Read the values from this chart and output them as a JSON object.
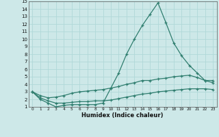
{
  "xlabel": "Humidex (Indice chaleur)",
  "xlim": [
    -0.5,
    23.5
  ],
  "ylim": [
    1,
    15
  ],
  "xticks": [
    0,
    1,
    2,
    3,
    4,
    5,
    6,
    7,
    8,
    9,
    10,
    11,
    12,
    13,
    14,
    15,
    16,
    17,
    18,
    19,
    20,
    21,
    22,
    23
  ],
  "yticks": [
    1,
    2,
    3,
    4,
    5,
    6,
    7,
    8,
    9,
    10,
    11,
    12,
    13,
    14,
    15
  ],
  "bg_color": "#cde8e8",
  "line_color": "#2e7d6e",
  "grid_color": "#b0d8d8",
  "series": [
    {
      "x": [
        0,
        1,
        2,
        3,
        4,
        5,
        6,
        7,
        8,
        9,
        10,
        11,
        12,
        13,
        14,
        15,
        16,
        17,
        18,
        19,
        20,
        21,
        22,
        23
      ],
      "y": [
        3.0,
        2.0,
        1.5,
        1.0,
        1.2,
        1.3,
        1.3,
        1.3,
        1.3,
        1.5,
        3.5,
        5.5,
        8.0,
        10.0,
        11.8,
        13.3,
        14.8,
        12.2,
        9.5,
        7.8,
        6.5,
        5.5,
        4.5,
        4.5
      ]
    },
    {
      "x": [
        0,
        1,
        2,
        3,
        4,
        5,
        6,
        7,
        8,
        9,
        10,
        11,
        12,
        13,
        14,
        15,
        16,
        17,
        18,
        19,
        20,
        21,
        22,
        23
      ],
      "y": [
        3.0,
        2.5,
        2.2,
        2.3,
        2.5,
        2.8,
        3.0,
        3.1,
        3.2,
        3.3,
        3.5,
        3.7,
        4.0,
        4.2,
        4.5,
        4.5,
        4.7,
        4.8,
        5.0,
        5.1,
        5.2,
        4.9,
        4.5,
        4.2
      ]
    },
    {
      "x": [
        0,
        1,
        2,
        3,
        4,
        5,
        6,
        7,
        8,
        9,
        10,
        11,
        12,
        13,
        14,
        15,
        16,
        17,
        18,
        19,
        20,
        21,
        22,
        23
      ],
      "y": [
        3.0,
        2.2,
        1.8,
        1.5,
        1.5,
        1.6,
        1.7,
        1.7,
        1.8,
        1.8,
        1.9,
        2.1,
        2.3,
        2.5,
        2.7,
        2.8,
        3.0,
        3.1,
        3.2,
        3.3,
        3.4,
        3.4,
        3.4,
        3.3
      ]
    }
  ]
}
